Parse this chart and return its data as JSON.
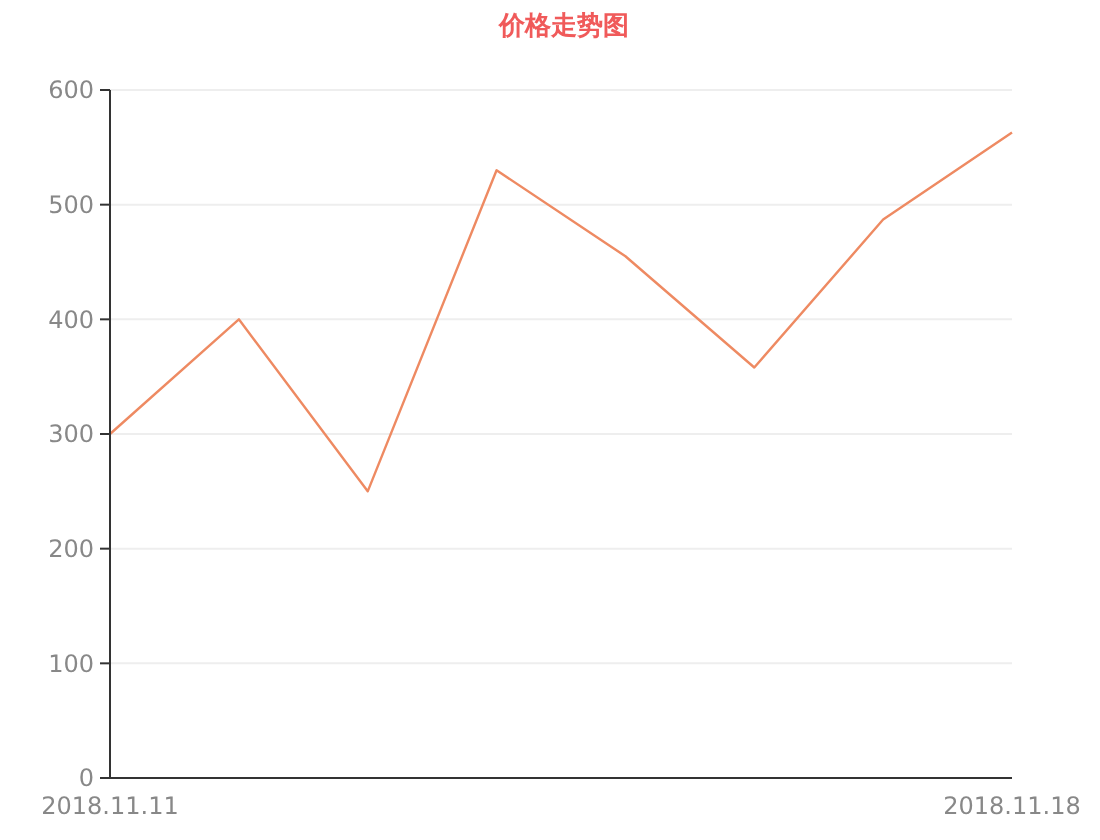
{
  "chart_data": {
    "type": "line",
    "title": "价格走势图",
    "categories": [
      "2018.11.11",
      null,
      null,
      null,
      null,
      null,
      null,
      "2018.11.18"
    ],
    "series": [
      {
        "color": "#ee8a62",
        "values": [
          300,
          400,
          250,
          530,
          455,
          358,
          487,
          563
        ]
      }
    ],
    "ylim": [
      0,
      600
    ],
    "yticks": [
      0,
      100,
      200,
      300,
      400,
      500,
      600
    ],
    "grid": "y",
    "marker": "none",
    "line_style": "solid"
  }
}
